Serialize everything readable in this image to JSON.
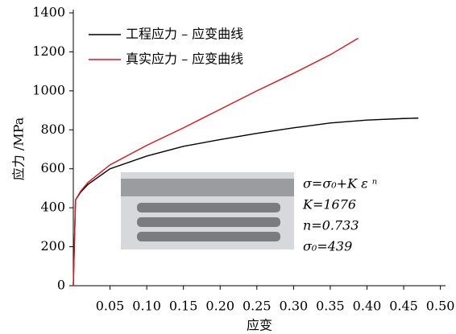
{
  "chart_data": {
    "type": "line",
    "xlabel": "应变",
    "ylabel": "应力 /MPa",
    "xlim": [
      0,
      0.507
    ],
    "ylim": [
      0,
      1400
    ],
    "xticks": [
      0.05,
      {
        "value": 0.1,
        "label": "0.10"
      },
      0.15,
      {
        "value": 0.2,
        "label": "0.20"
      },
      0.25,
      {
        "value": 0.3,
        "label": "0.30"
      },
      0.35,
      {
        "value": 0.4,
        "label": "0.40"
      },
      0.45,
      {
        "value": 0.5,
        "label": "0.50"
      }
    ],
    "yticks": [
      0,
      200,
      400,
      600,
      800,
      1000,
      1200,
      1400
    ],
    "legend": "upper left",
    "series": [
      {
        "name": "工程应力 – 应变曲线",
        "color": "#000000",
        "x": [
          0,
          0.003,
          0.01,
          0.02,
          0.05,
          0.1,
          0.15,
          0.2,
          0.25,
          0.3,
          0.35,
          0.4,
          0.45,
          0.47
        ],
        "values": [
          0,
          440,
          480,
          520,
          600,
          665,
          715,
          750,
          782,
          810,
          835,
          850,
          858,
          860
        ]
      },
      {
        "name": "真实应力 – 应变曲线",
        "color": "#e0141e",
        "x": [
          0,
          0.003,
          0.01,
          0.02,
          0.05,
          0.1,
          0.15,
          0.2,
          0.25,
          0.3,
          0.35,
          0.388
        ],
        "values": [
          0,
          440,
          485,
          530,
          620,
          720,
          810,
          905,
          1000,
          1090,
          1185,
          1270
        ]
      }
    ],
    "annotations": [
      "σ=σ₀+K ε ⁿ",
      "K=1676",
      "n=0.733",
      "σ₀=439"
    ]
  }
}
